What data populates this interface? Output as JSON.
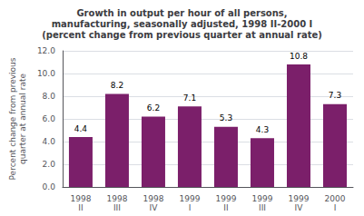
{
  "chart_data": {
    "type": "bar",
    "title": "Growth in output per hour of all persons,\nmanufacturing, seasonally adjusted, 1998 II-2000 I\n(percent change from previous quarter at annual rate)",
    "y_label": "Percent change from previous\nquarter at annual rate",
    "categories": [
      "1998\nII",
      "1998\nIII",
      "1998\nIV",
      "1999\nI",
      "1999\nII",
      "1999\nIII",
      "1999\nIV",
      "2000\nI"
    ],
    "values": [
      4.4,
      8.2,
      6.2,
      7.1,
      5.3,
      4.3,
      10.8,
      7.3
    ],
    "color": "#7B1F6A",
    "ylim": [
      0,
      12.0
    ],
    "yticks": [
      {
        "value": 0,
        "label": "0.0"
      },
      {
        "value": 2,
        "label": "2.0"
      },
      {
        "value": 4,
        "label": "4.0"
      },
      {
        "value": 6,
        "label": "6.0"
      },
      {
        "value": 8,
        "label": "8.0"
      },
      {
        "value": 10,
        "label": "10.0"
      },
      {
        "value": 12,
        "label": "12.0"
      }
    ],
    "grid": true,
    "data_labels": true
  }
}
